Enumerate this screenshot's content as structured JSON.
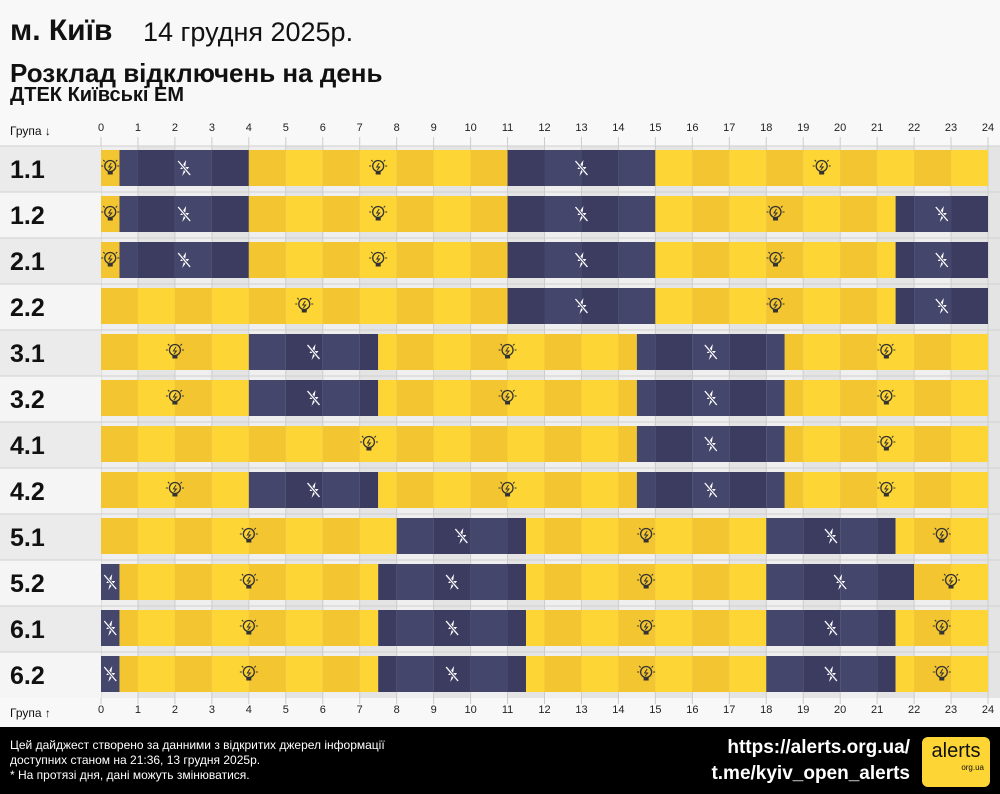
{
  "header": {
    "city": "м. Київ",
    "date": "14 грудня 2025р.",
    "title": "Розклад відключень на день",
    "provider": "ДТЕК Київські ЕМ"
  },
  "axis": {
    "top_label": "Група ↓",
    "bottom_label": "Група ↑"
  },
  "footer": {
    "line1": "Цей дайджест створено за данними з відкритих джерел інформації",
    "line2": "доступних станом на 21:36, 13 грудня 2025р.",
    "line3": "* На протязі дня, дані можуть змінюватися.",
    "url": "https://alerts.org.ua/",
    "telegram": "t.me/kyiv_open_alerts",
    "logo_text": "alerts",
    "logo_sub": "org.ua"
  },
  "colors": {
    "on": "#fdd535",
    "on_alt": "#f3c531",
    "off": "#45466b",
    "off_alt": "#3b3c60"
  },
  "chart_data": {
    "type": "timeline",
    "xlim": [
      0,
      24
    ],
    "ticks": [
      0,
      1,
      2,
      3,
      4,
      5,
      6,
      7,
      8,
      9,
      10,
      11,
      12,
      13,
      14,
      15,
      16,
      17,
      18,
      19,
      20,
      21,
      22,
      23,
      24
    ],
    "legend": {
      "on": "lightbulb-icon (power on)",
      "off": "power-off-icon (outage)"
    },
    "groups": [
      {
        "name": "1.1",
        "off": [
          [
            0.5,
            4
          ],
          [
            11,
            15
          ]
        ]
      },
      {
        "name": "1.2",
        "off": [
          [
            0.5,
            4
          ],
          [
            11,
            15
          ],
          [
            21.5,
            24
          ]
        ]
      },
      {
        "name": "2.1",
        "off": [
          [
            0.5,
            4
          ],
          [
            11,
            15
          ],
          [
            21.5,
            24
          ]
        ]
      },
      {
        "name": "2.2",
        "off": [
          [
            11,
            15
          ],
          [
            21.5,
            24
          ]
        ]
      },
      {
        "name": "3.1",
        "off": [
          [
            4,
            7.5
          ],
          [
            14.5,
            18.5
          ]
        ]
      },
      {
        "name": "3.2",
        "off": [
          [
            4,
            7.5
          ],
          [
            14.5,
            18.5
          ]
        ]
      },
      {
        "name": "4.1",
        "off": [
          [
            14.5,
            18.5
          ]
        ]
      },
      {
        "name": "4.2",
        "off": [
          [
            4,
            7.5
          ],
          [
            14.5,
            18.5
          ]
        ]
      },
      {
        "name": "5.1",
        "off": [
          [
            8,
            11.5
          ],
          [
            18,
            21.5
          ]
        ]
      },
      {
        "name": "5.2",
        "off": [
          [
            0,
            0.5
          ],
          [
            7.5,
            11.5
          ],
          [
            18,
            22
          ]
        ]
      },
      {
        "name": "6.1",
        "off": [
          [
            0,
            0.5
          ],
          [
            7.5,
            11.5
          ],
          [
            18,
            21.5
          ]
        ]
      },
      {
        "name": "6.2",
        "off": [
          [
            0,
            0.5
          ],
          [
            7.5,
            11.5
          ],
          [
            18,
            21.5
          ]
        ]
      }
    ]
  }
}
